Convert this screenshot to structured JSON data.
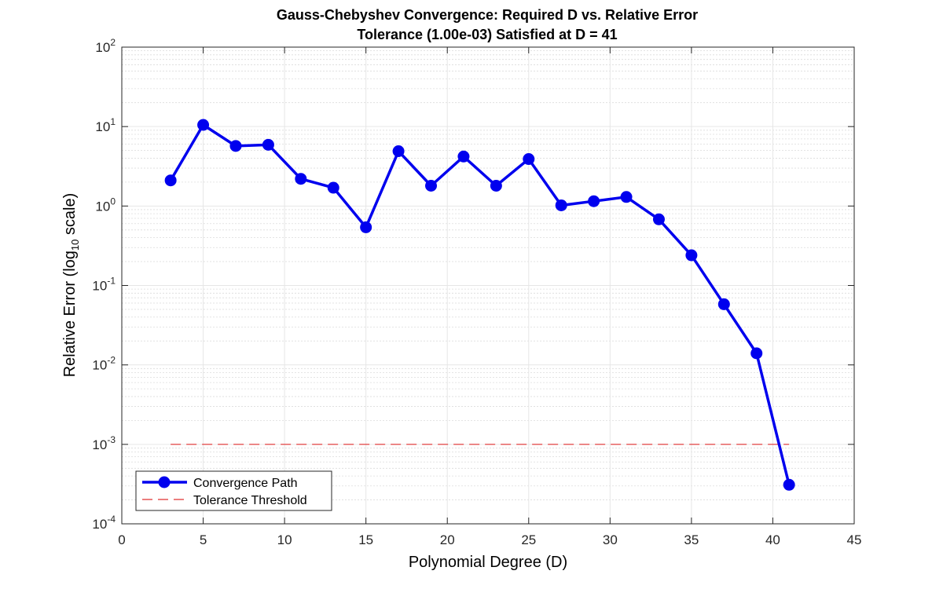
{
  "chart_data": {
    "type": "line",
    "title": "Gauss-Chebyshev Convergence: Required D vs. Relative Error",
    "subtitle": "Tolerance (1.00e-03) Satisfied at D = 41",
    "xlabel": "Polynomial Degree (D)",
    "ylabel": {
      "before": "Relative  Error  (log",
      "sub": "10",
      "after": "  scale)"
    },
    "xlim": [
      0,
      45
    ],
    "ylim": [
      0.0001,
      100
    ],
    "yscale": "log",
    "grid": true,
    "legend_location": "bottom-left",
    "x_ticks": [
      0,
      5,
      10,
      15,
      20,
      25,
      30,
      35,
      40,
      45
    ],
    "y_ticks": [
      {
        "value": 0.0001,
        "base": "10",
        "exp": "-4"
      },
      {
        "value": 0.001,
        "base": "10",
        "exp": "-3"
      },
      {
        "value": 0.01,
        "base": "10",
        "exp": "-2"
      },
      {
        "value": 0.1,
        "base": "10",
        "exp": "-1"
      },
      {
        "value": 1,
        "base": "10",
        "exp": "0"
      },
      {
        "value": 10,
        "base": "10",
        "exp": "1"
      },
      {
        "value": 100,
        "base": "10",
        "exp": "2"
      }
    ],
    "series": [
      {
        "name": "Convergence Path",
        "color": "#0000ee",
        "style": "solid-with-markers",
        "x": [
          3,
          5,
          7,
          9,
          11,
          13,
          15,
          17,
          19,
          21,
          23,
          25,
          27,
          29,
          31,
          33,
          35,
          37,
          39,
          41
        ],
        "y": [
          2.1,
          10.5,
          5.7,
          5.9,
          2.2,
          1.7,
          0.54,
          4.9,
          1.8,
          4.2,
          1.8,
          3.9,
          1.02,
          1.15,
          1.3,
          0.68,
          0.24,
          0.058,
          0.014,
          0.00031
        ]
      },
      {
        "name": "Tolerance Threshold",
        "color": "#e03030",
        "style": "dashed",
        "x": [
          3,
          41
        ],
        "y": [
          0.001,
          0.001
        ]
      }
    ]
  }
}
